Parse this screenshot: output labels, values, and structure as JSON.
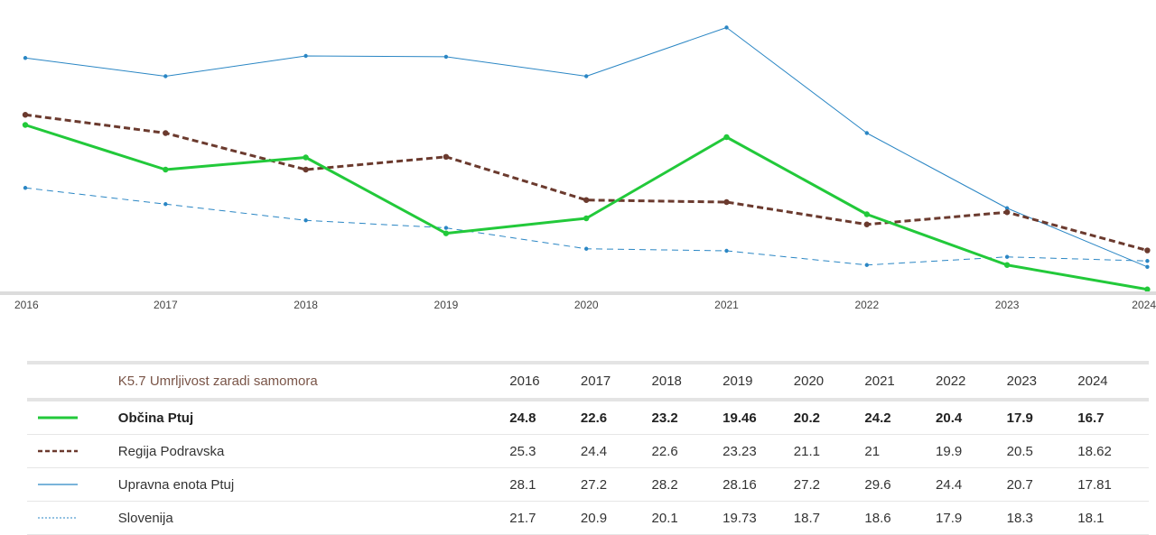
{
  "chart_data": {
    "type": "line",
    "title": "K5.7 Umrljivost zaradi samomora",
    "categories": [
      "2016",
      "2017",
      "2018",
      "2019",
      "2020",
      "2021",
      "2022",
      "2023",
      "2024"
    ],
    "ylim": [
      16.6,
      30.2
    ],
    "xlabel": "",
    "ylabel": "",
    "series": [
      {
        "name": "Občina Ptuj",
        "color": "#22c93a",
        "style": "solid-thick",
        "values": [
          24.8,
          22.6,
          23.2,
          19.46,
          20.2,
          24.2,
          20.4,
          17.9,
          16.7
        ]
      },
      {
        "name": "Regija Podravska",
        "color": "#6b3a2e",
        "style": "dashed-thick",
        "values": [
          25.3,
          24.4,
          22.6,
          23.23,
          21.1,
          21,
          19.9,
          20.5,
          18.62
        ]
      },
      {
        "name": "Upravna enota Ptuj",
        "color": "#2a86c4",
        "style": "solid-thin",
        "values": [
          28.1,
          27.2,
          28.2,
          28.16,
          27.2,
          29.6,
          24.4,
          20.7,
          17.81
        ]
      },
      {
        "name": "Slovenija",
        "color": "#2a86c4",
        "style": "dashed-thin",
        "values": [
          21.7,
          20.9,
          20.1,
          19.73,
          18.7,
          18.6,
          17.9,
          18.3,
          18.1
        ]
      }
    ]
  },
  "table": {
    "title": "K5.7 Umrljivost zaradi samomora",
    "years": [
      "2016",
      "2017",
      "2018",
      "2019",
      "2020",
      "2021",
      "2022",
      "2023",
      "2024"
    ],
    "rows": [
      {
        "name": "Občina Ptuj",
        "values": [
          "24.8",
          "22.6",
          "23.2",
          "19.46",
          "20.2",
          "24.2",
          "20.4",
          "17.9",
          "16.7"
        ]
      },
      {
        "name": "Regija Podravska",
        "values": [
          "25.3",
          "24.4",
          "22.6",
          "23.23",
          "21.1",
          "21",
          "19.9",
          "20.5",
          "18.62"
        ]
      },
      {
        "name": "Upravna enota Ptuj",
        "values": [
          "28.1",
          "27.2",
          "28.2",
          "28.16",
          "27.2",
          "29.6",
          "24.4",
          "20.7",
          "17.81"
        ]
      },
      {
        "name": "Slovenija",
        "values": [
          "21.7",
          "20.9",
          "20.1",
          "19.73",
          "18.7",
          "18.6",
          "17.9",
          "18.3",
          "18.1"
        ]
      }
    ]
  }
}
